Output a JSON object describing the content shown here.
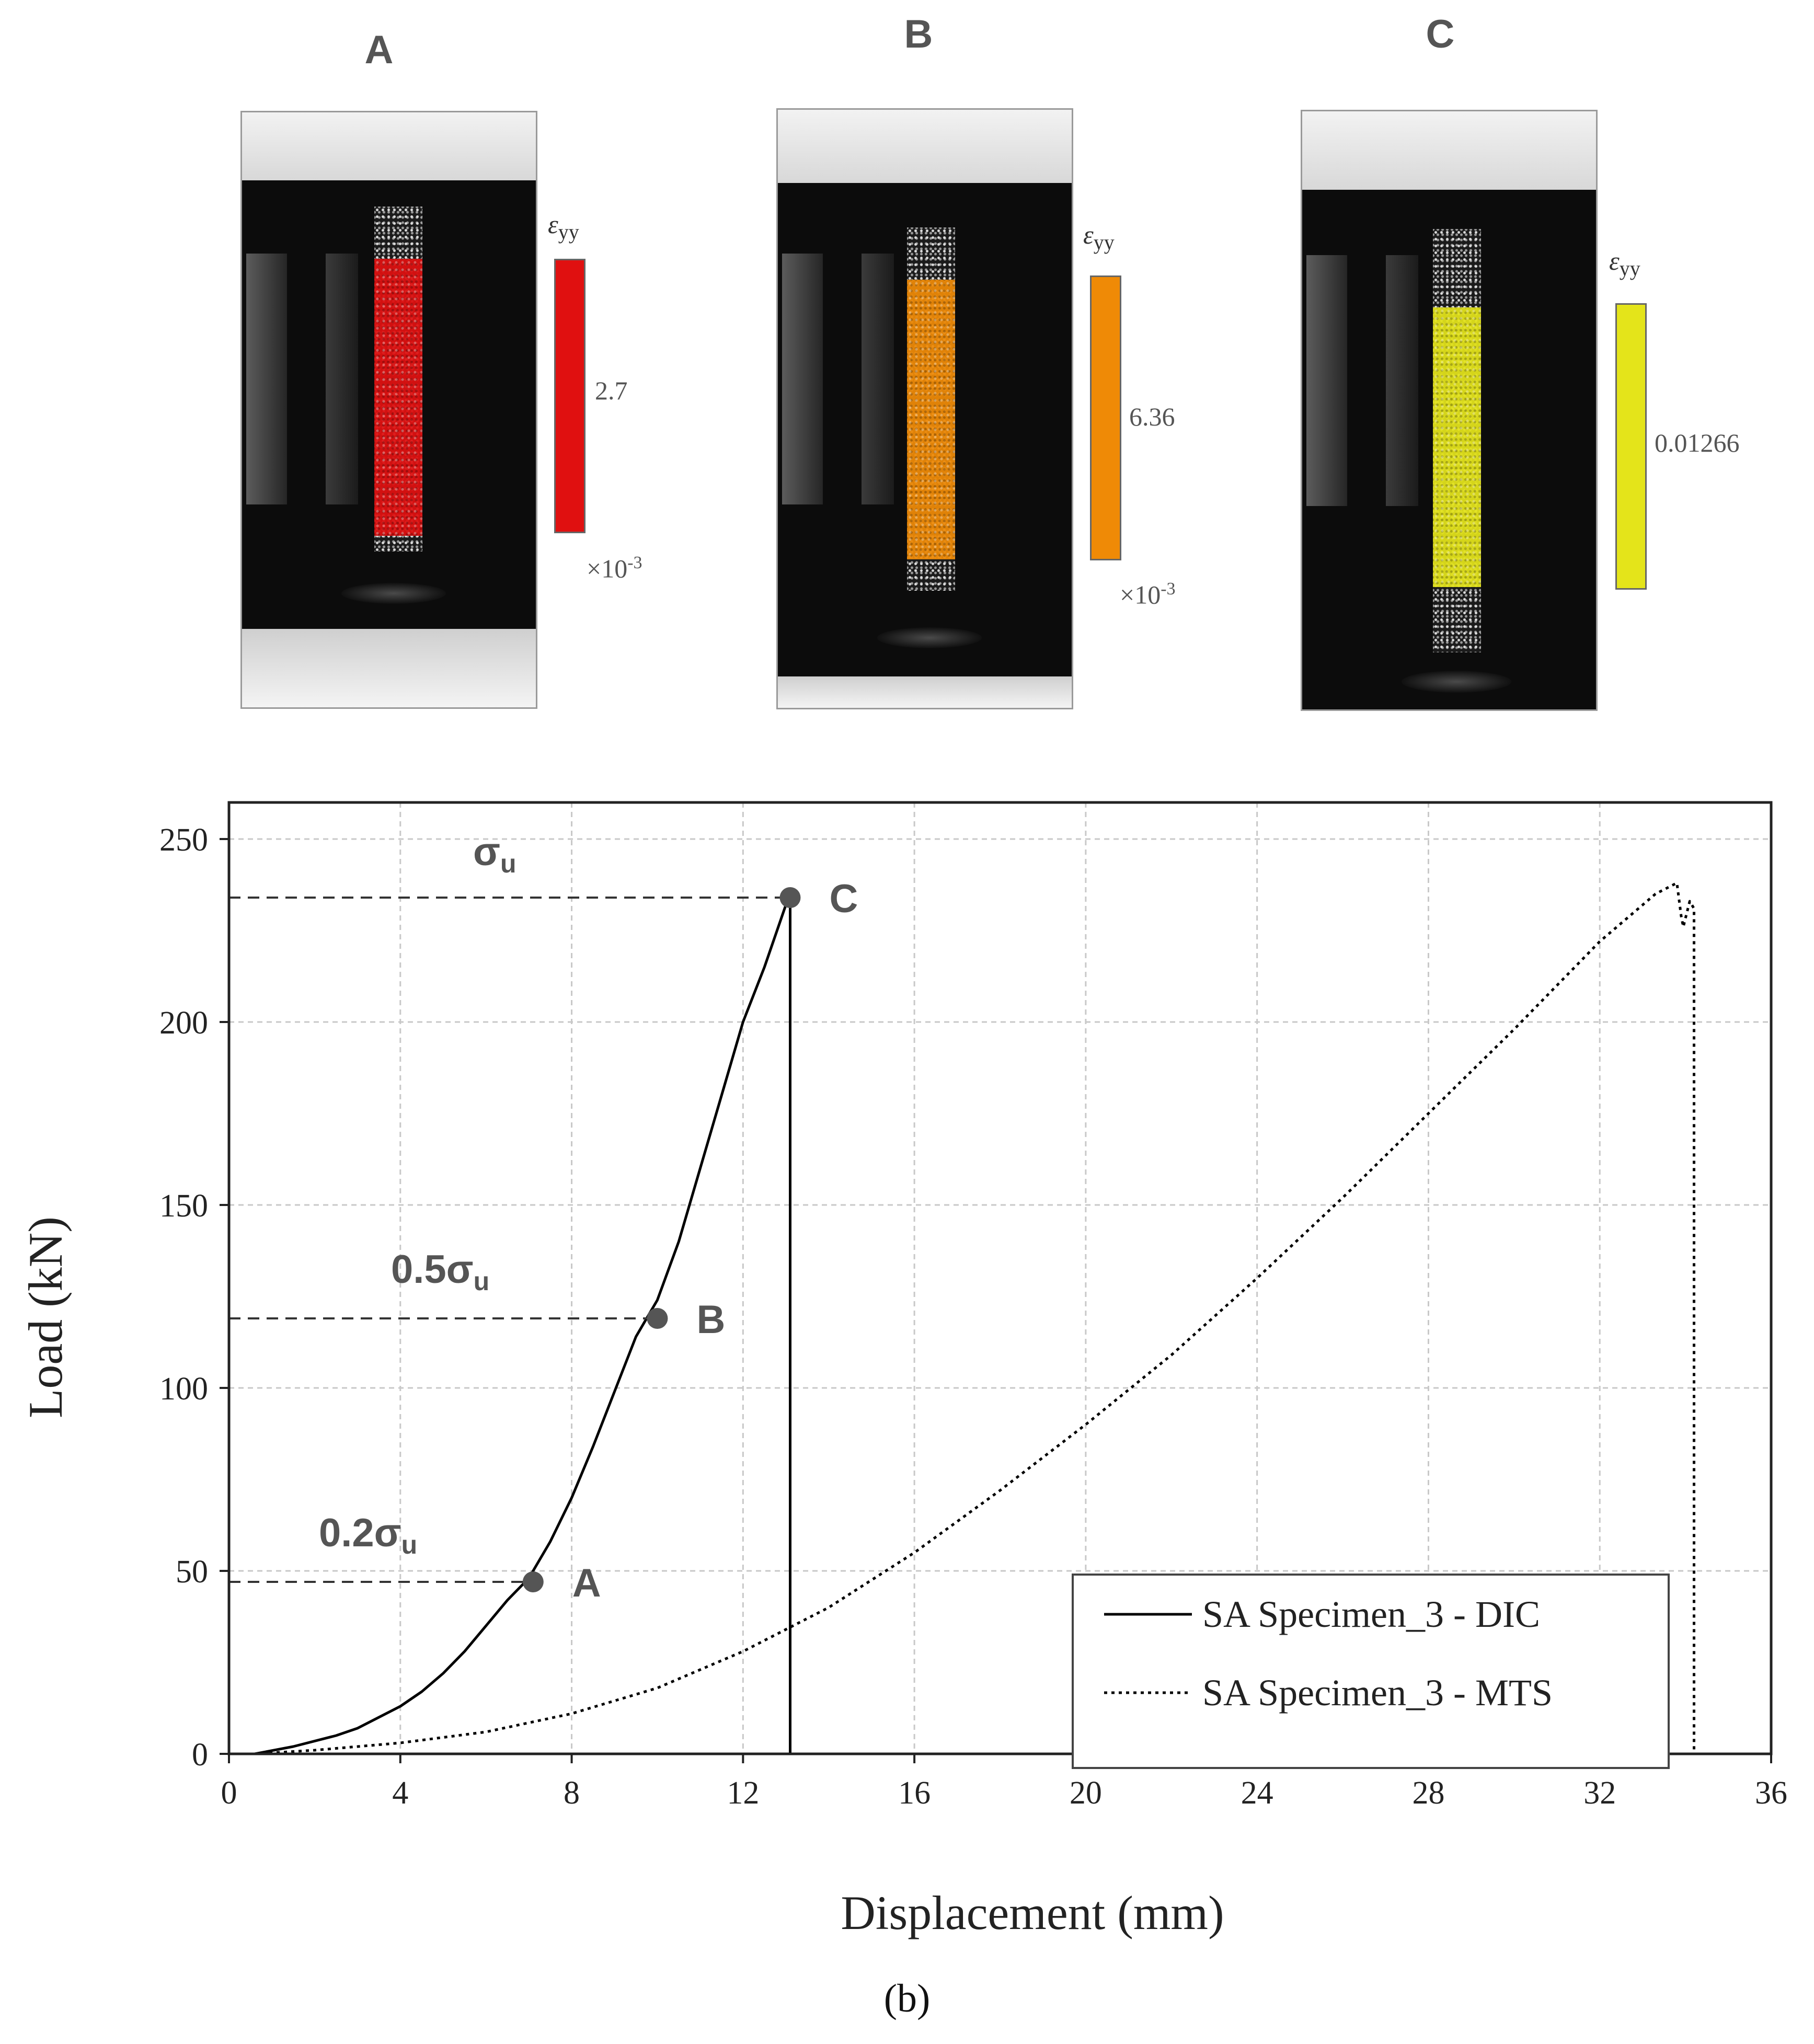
{
  "panels": [
    {
      "letter": "A",
      "colorbar_title": "ε",
      "colorbar_sub": "yy",
      "colorbar_value": "2.7",
      "colorbar_mult_base": "×10",
      "colorbar_mult_exp": "-3",
      "strain_color": "#e01010"
    },
    {
      "letter": "B",
      "colorbar_title": "ε",
      "colorbar_sub": "yy",
      "colorbar_value": "6.36",
      "colorbar_mult_base": "×10",
      "colorbar_mult_exp": "-3",
      "strain_color": "#ef8a06"
    },
    {
      "letter": "C",
      "colorbar_title": "ε",
      "colorbar_sub": "yy",
      "colorbar_value": "0.01266",
      "colorbar_mult_base": "",
      "colorbar_mult_exp": "",
      "strain_color": "#e4e41a"
    }
  ],
  "chart_data": {
    "type": "line",
    "xlabel": "Displacement (mm)",
    "ylabel": "Load (kN)",
    "xlim": [
      0,
      36
    ],
    "ylim": [
      0,
      260
    ],
    "xticks": [
      0,
      4,
      8,
      12,
      16,
      20,
      24,
      28,
      32,
      36
    ],
    "yticks": [
      0,
      50,
      100,
      150,
      200,
      250
    ],
    "grid": true,
    "legend_position": "bottom-right",
    "series": [
      {
        "name": "SA Specimen_3 - DIC",
        "style": "solid",
        "color": "#000000",
        "x": [
          0.6,
          1.5,
          2.5,
          3.0,
          3.5,
          4.0,
          4.5,
          5.0,
          5.5,
          6.0,
          6.5,
          7.0,
          7.5,
          8.0,
          8.5,
          9.0,
          9.5,
          10.0,
          10.5,
          11.0,
          11.5,
          12.0,
          12.5,
          13.0,
          13.1,
          13.1,
          13.2
        ],
        "y": [
          0,
          2,
          5,
          7,
          10,
          13,
          17,
          22,
          28,
          35,
          42,
          48,
          58,
          70,
          84,
          99,
          114,
          124,
          140,
          160,
          180,
          200,
          215,
          232,
          235,
          0,
          0
        ]
      },
      {
        "name": "SA Specimen_3 - MTS",
        "style": "dotted",
        "color": "#000000",
        "x": [
          0.6,
          2,
          4,
          6,
          8,
          10,
          12,
          14,
          16,
          18,
          20,
          22,
          24,
          26,
          28,
          30,
          32,
          33.3,
          33.8,
          33.9,
          33.95,
          34.1,
          34.2,
          34.2,
          36
        ],
        "y": [
          0,
          1,
          3,
          6,
          11,
          18,
          28,
          40,
          55,
          72,
          90,
          109,
          130,
          152,
          175,
          198,
          222,
          235,
          238,
          229,
          226,
          233,
          231,
          0,
          0
        ]
      }
    ],
    "markers": [
      {
        "label": "A",
        "x": 7.1,
        "y": 47,
        "level_label": "0.2σ",
        "level_sub": "u"
      },
      {
        "label": "B",
        "x": 10.0,
        "y": 119,
        "level_label": "0.5σ",
        "level_sub": "u"
      },
      {
        "label": "C",
        "x": 13.1,
        "y": 234,
        "level_label": "σ",
        "level_sub": "u"
      }
    ],
    "caption": "(b)"
  }
}
